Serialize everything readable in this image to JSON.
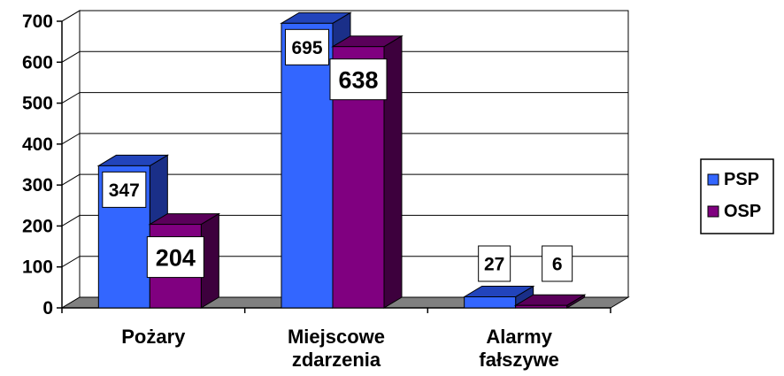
{
  "chart_data": {
    "type": "bar",
    "three_d": true,
    "categories": [
      [
        "Pożary"
      ],
      [
        "Miejscowe",
        "zdarzenia"
      ],
      [
        "Alarmy",
        "fałszywe"
      ]
    ],
    "series": [
      {
        "name": "PSP",
        "values": [
          347,
          695,
          27
        ],
        "color": "#3366ff",
        "top_color": "#2244bb",
        "side_color": "#1a2f88"
      },
      {
        "name": "OSP",
        "values": [
          204,
          638,
          6
        ],
        "color": "#800080",
        "top_color": "#5a005a",
        "side_color": "#3d003d"
      }
    ],
    "ylim": [
      0,
      700
    ],
    "yticks": [
      "0",
      "100",
      "200",
      "300",
      "400",
      "500",
      "600",
      "700"
    ],
    "grid": true,
    "legend_position": "right",
    "floor_color": "#808080"
  }
}
